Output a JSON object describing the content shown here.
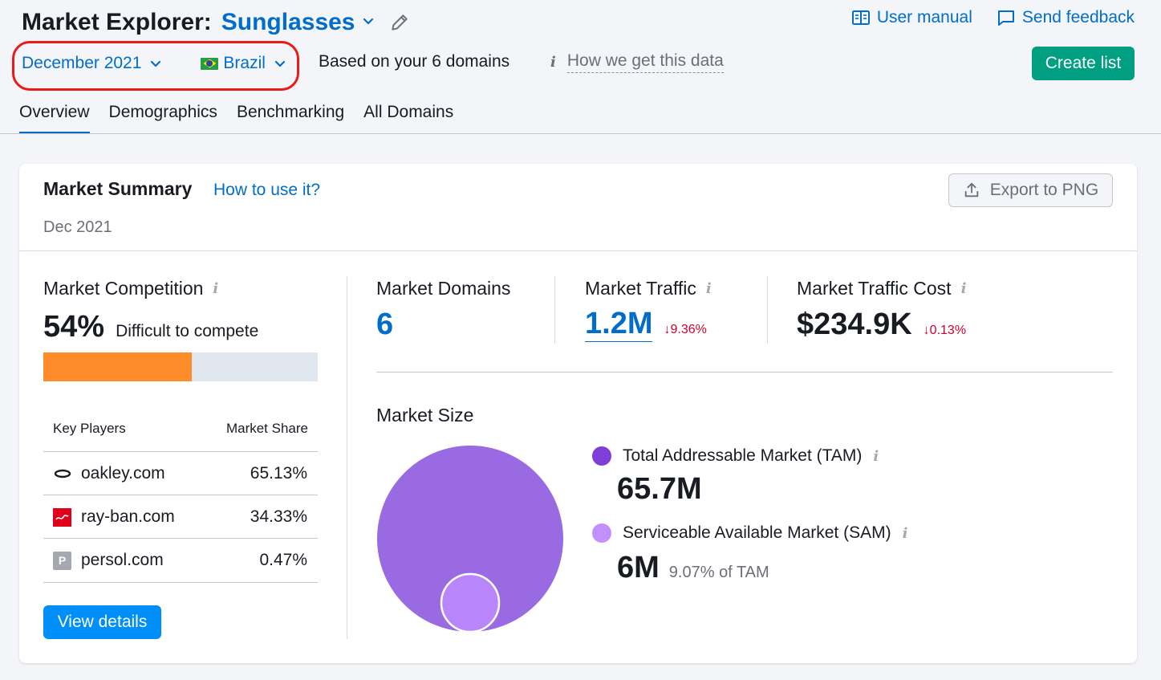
{
  "header": {
    "title": "Market Explorer:",
    "niche": "Sunglasses",
    "user_manual": "User manual",
    "send_feedback": "Send feedback"
  },
  "filters": {
    "date": "December 2021",
    "country": "Brazil",
    "based_on": "Based on your 6 domains",
    "how_data": "How we get this data",
    "create_list": "Create list"
  },
  "tabs": [
    {
      "label": "Overview",
      "active": true
    },
    {
      "label": "Demographics",
      "active": false
    },
    {
      "label": "Benchmarking",
      "active": false
    },
    {
      "label": "All Domains",
      "active": false
    }
  ],
  "summary": {
    "title": "Market Summary",
    "how_to_use": "How to use it?",
    "date": "Dec 2021",
    "export": "Export to PNG"
  },
  "competition": {
    "label": "Market Competition",
    "value": "54%",
    "percent": 54,
    "desc": "Difficult to compete",
    "colors": {
      "fill": "#ff8c2a",
      "track": "#e1e7ef"
    }
  },
  "key_players": {
    "col_player": "Key Players",
    "col_share": "Market Share",
    "rows": [
      {
        "domain": "oakley.com",
        "share": "65.13%",
        "icon": "oakley-logo-icon"
      },
      {
        "domain": "ray-ban.com",
        "share": "34.33%",
        "icon": "ray-ban-logo-icon"
      },
      {
        "domain": "persol.com",
        "share": "0.47%",
        "icon": "persol-logo-icon",
        "letter": "P"
      }
    ],
    "view_details": "View details"
  },
  "kpis": {
    "domains": {
      "label": "Market Domains",
      "value": "6"
    },
    "traffic": {
      "label": "Market Traffic",
      "value": "1.2M",
      "delta": "9.36%"
    },
    "traffic_cost": {
      "label": "Market Traffic Cost",
      "value": "$234.9K",
      "delta": "0.13%"
    }
  },
  "market_size": {
    "title": "Market Size",
    "tam": {
      "label": "Total Addressable Market (TAM)",
      "value": "65.7M",
      "color": "#9a6ae3"
    },
    "sam": {
      "label": "Serviceable Available Market (SAM)",
      "value": "6M",
      "note": "9.07% of TAM",
      "color": "#b985fa"
    }
  }
}
